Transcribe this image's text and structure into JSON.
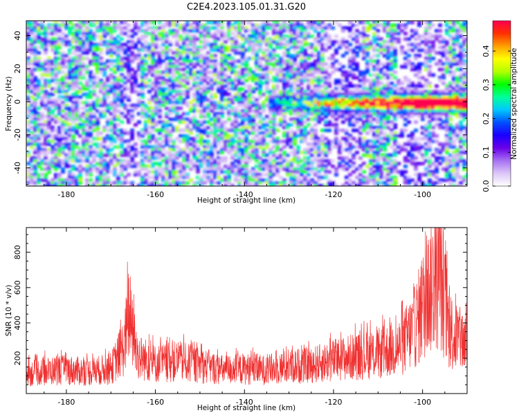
{
  "title": "C2E4.2023.105.01.31.G20",
  "chart_data": [
    {
      "type": "heatmap",
      "xlabel": "Height of straight line (km)",
      "ylabel": "Frequency (Hz)",
      "xlim": [
        -189,
        -90
      ],
      "ylim": [
        -51,
        49
      ],
      "x_ticks": [
        -180,
        -160,
        -140,
        -120,
        -100
      ],
      "y_ticks": [
        -40,
        -20,
        0,
        20,
        40
      ],
      "colorbar": {
        "label": "Normalized spectral amplitude",
        "range": [
          0,
          0.49
        ],
        "ticks": [
          0.0,
          0.1,
          0.2,
          0.3,
          0.4
        ],
        "colormap": [
          "#ffffff",
          "#dcc6f7",
          "#a770f2",
          "#6a00e8",
          "#1a00ff",
          "#0050ff",
          "#00c8ff",
          "#00ff9a",
          "#00ff00",
          "#b4ff00",
          "#ffff00",
          "#ffa000",
          "#ff3000",
          "#ff0050"
        ]
      },
      "features": [
        {
          "x_range": [
            -135,
            -90
          ],
          "frequency": 0,
          "description_value": "band near 0 Hz, strongest near -100 km"
        }
      ]
    },
    {
      "type": "line",
      "xlabel": "Height of straight line (km)",
      "ylabel": "SNR (10 * v/v)",
      "xlim": [
        -189,
        -90
      ],
      "ylim": [
        0,
        940
      ],
      "x_ticks": [
        -180,
        -160,
        -140,
        -120,
        -100
      ],
      "y_ticks": [
        200,
        400,
        600,
        800
      ],
      "color": "#f03030",
      "samples": [
        {
          "x": -189,
          "y": 160
        },
        {
          "x": -185,
          "y": 180
        },
        {
          "x": -180,
          "y": 190
        },
        {
          "x": -175,
          "y": 175
        },
        {
          "x": -170,
          "y": 200
        },
        {
          "x": -167,
          "y": 380
        },
        {
          "x": -166,
          "y": 650
        },
        {
          "x": -164,
          "y": 300
        },
        {
          "x": -160,
          "y": 240
        },
        {
          "x": -155,
          "y": 260
        },
        {
          "x": -150,
          "y": 230
        },
        {
          "x": -145,
          "y": 190
        },
        {
          "x": -140,
          "y": 200
        },
        {
          "x": -135,
          "y": 190
        },
        {
          "x": -130,
          "y": 220
        },
        {
          "x": -125,
          "y": 230
        },
        {
          "x": -120,
          "y": 270
        },
        {
          "x": -115,
          "y": 300
        },
        {
          "x": -110,
          "y": 320
        },
        {
          "x": -105,
          "y": 380
        },
        {
          "x": -102,
          "y": 520
        },
        {
          "x": -100,
          "y": 700
        },
        {
          "x": -98,
          "y": 880
        },
        {
          "x": -96,
          "y": 940
        },
        {
          "x": -94,
          "y": 520
        },
        {
          "x": -92,
          "y": 430
        },
        {
          "x": -90,
          "y": 420
        }
      ]
    }
  ]
}
